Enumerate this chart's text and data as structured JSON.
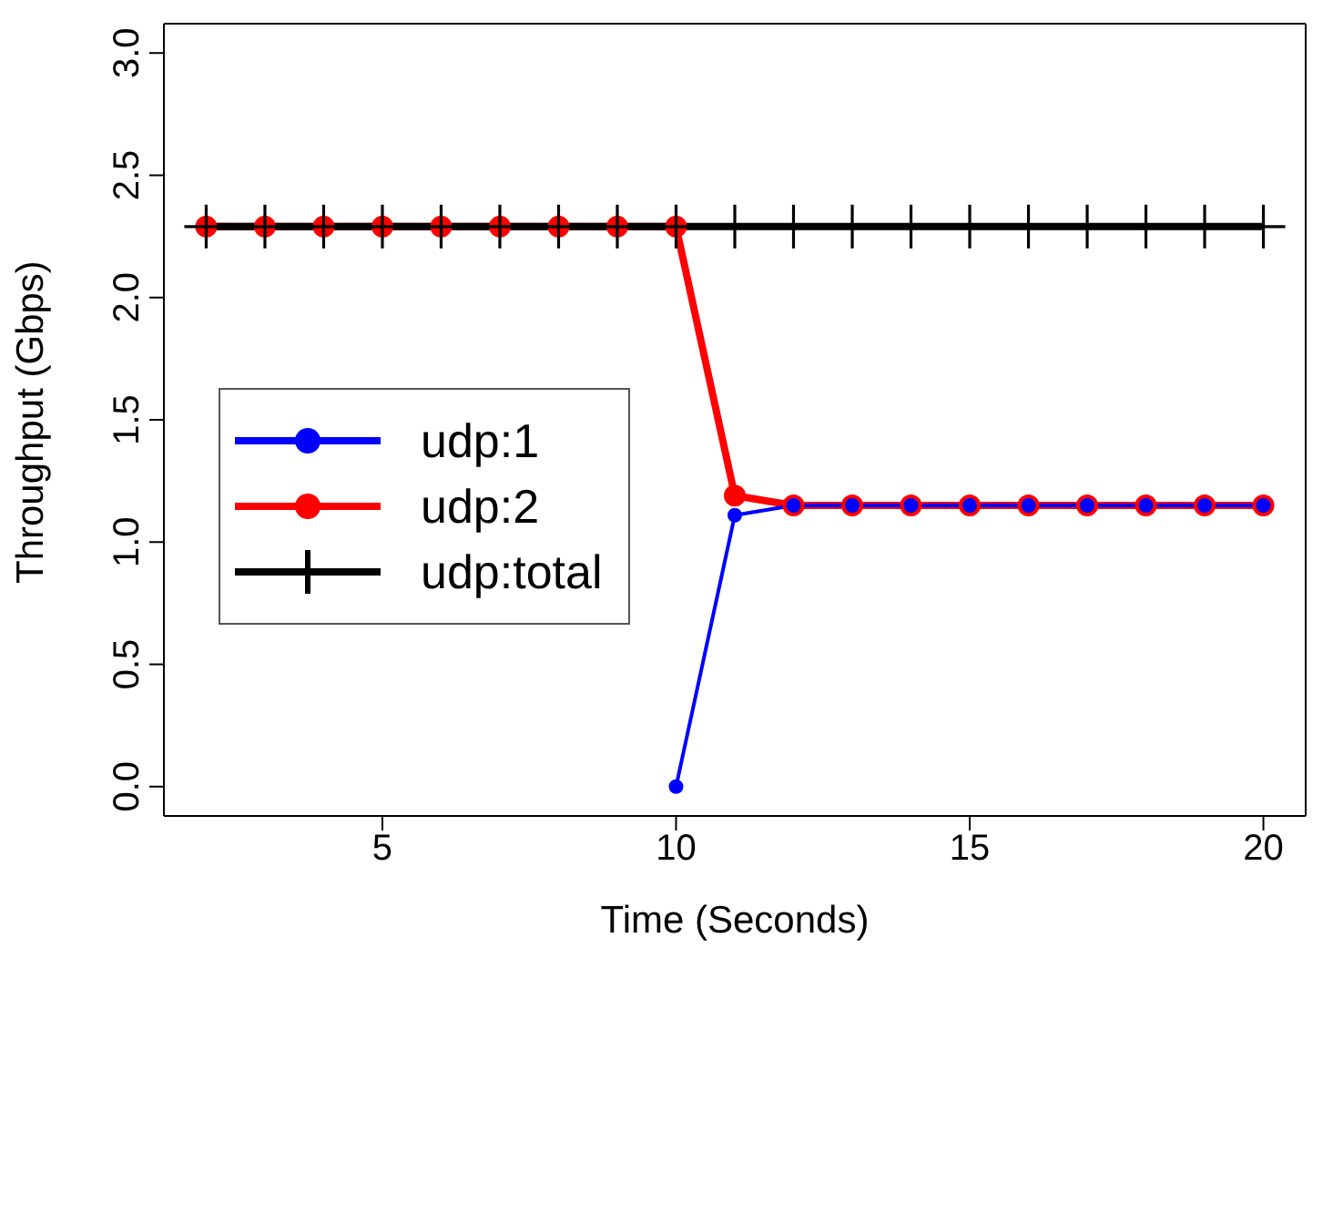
{
  "chart_data": {
    "type": "line",
    "xlabel": "Time (Seconds)",
    "ylabel": "Throughput (Gbps)",
    "x": [
      2,
      3,
      4,
      5,
      6,
      7,
      8,
      9,
      10,
      11,
      12,
      13,
      14,
      15,
      16,
      17,
      18,
      19,
      20
    ],
    "series": [
      {
        "name": "udp:1",
        "color": "#0000ff",
        "marker": "circle",
        "values": [
          null,
          null,
          null,
          null,
          null,
          null,
          null,
          null,
          0,
          1.11,
          1.15,
          1.15,
          1.15,
          1.15,
          1.15,
          1.15,
          1.15,
          1.15,
          1.15
        ]
      },
      {
        "name": "udp:2",
        "color": "#ff0000",
        "marker": "circle",
        "values": [
          2.29,
          2.29,
          2.29,
          2.29,
          2.29,
          2.29,
          2.29,
          2.29,
          2.29,
          1.19,
          1.15,
          1.15,
          1.15,
          1.15,
          1.15,
          1.15,
          1.15,
          1.15,
          1.15
        ]
      },
      {
        "name": "udp:total",
        "color": "#000000",
        "marker": "cross",
        "values": [
          2.29,
          2.29,
          2.29,
          2.29,
          2.29,
          2.29,
          2.29,
          2.29,
          2.29,
          2.29,
          2.29,
          2.29,
          2.29,
          2.29,
          2.29,
          2.29,
          2.29,
          2.29,
          2.29
        ]
      }
    ],
    "xlim": [
      1.28,
      20.72
    ],
    "xticks": [
      5,
      10,
      15,
      20
    ],
    "ylim": [
      -0.12,
      3.12
    ],
    "yticks": [
      {
        "value": 0,
        "label": "0.0"
      },
      {
        "value": 0.5,
        "label": "0.5"
      },
      {
        "value": 1,
        "label": "1.0"
      },
      {
        "value": 1.5,
        "label": "1.5"
      },
      {
        "value": 2,
        "label": "2.0"
      },
      {
        "value": 2.5,
        "label": "2.5"
      },
      {
        "value": 3,
        "label": "3.0"
      }
    ],
    "legend": "left",
    "grid": false
  }
}
